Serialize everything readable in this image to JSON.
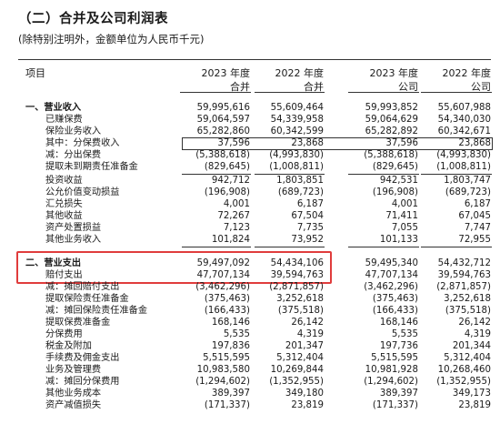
{
  "title": "（二）合并及公司利润表",
  "subtitle": "(除特别注明外，金额单位为人民币千元)",
  "header": {
    "item": "项目",
    "cols": [
      {
        "year": "2023 年度",
        "scope": "合并"
      },
      {
        "year": "2022 年度",
        "scope": "合并"
      },
      {
        "year": "2023 年度",
        "scope": "公司"
      },
      {
        "year": "2022 年度",
        "scope": "公司"
      }
    ]
  },
  "section1": {
    "rows": [
      {
        "label": "一、营业收入",
        "values": [
          "59,995,616",
          "55,609,464",
          "59,993,852",
          "55,607,988"
        ]
      },
      {
        "label": "已赚保费",
        "values": [
          "59,064,597",
          "54,339,958",
          "59,064,629",
          "54,340,030"
        ]
      },
      {
        "label": "保险业务收入",
        "values": [
          "65,282,860",
          "60,342,599",
          "65,282,892",
          "60,342,671"
        ]
      },
      {
        "label": "其中：分保费收入",
        "values": [
          "37,596",
          "23,868",
          "37,596",
          "23,868"
        ]
      },
      {
        "label": "减：分出保费",
        "values": [
          "(5,388,618)",
          "(4,993,830)",
          "(5,388,618)",
          "(4,993,830)"
        ]
      },
      {
        "label": "提取未到期责任准备金",
        "values": [
          "(829,645)",
          "(1,008,811)",
          "(829,645)",
          "(1,008,811)"
        ]
      },
      {
        "label": "投资收益",
        "values": [
          "942,712",
          "1,803,851",
          "942,531",
          "1,803,747"
        ]
      },
      {
        "label": "公允价值变动损益",
        "values": [
          "(196,908)",
          "(689,723)",
          "(196,908)",
          "(689,723)"
        ]
      },
      {
        "label": "汇兑损失",
        "values": [
          "4,001",
          "6,187",
          "4,001",
          "6,187"
        ]
      },
      {
        "label": "其他收益",
        "values": [
          "72,267",
          "67,504",
          "71,411",
          "67,045"
        ]
      },
      {
        "label": "资产处置损益",
        "values": [
          "7,123",
          "7,735",
          "7,055",
          "7,747"
        ]
      },
      {
        "label": "其他业务收入",
        "values": [
          "101,824",
          "73,952",
          "101,133",
          "72,955"
        ]
      }
    ]
  },
  "section2": {
    "rows": [
      {
        "label": "二、营业支出",
        "values": [
          "59,497,092",
          "54,434,106",
          "59,495,340",
          "54,432,712"
        ]
      },
      {
        "label": "赔付支出",
        "values": [
          "47,707,134",
          "39,594,763",
          "47,707,134",
          "39,594,763"
        ]
      },
      {
        "label": "减：摊回赔付支出",
        "values": [
          "(3,462,296)",
          "(2,871,857)",
          "(3,462,296)",
          "(2,871,857)"
        ]
      },
      {
        "label": "提取保险责任准备金",
        "values": [
          "(375,463)",
          "3,252,618",
          "(375,463)",
          "3,252,618"
        ]
      },
      {
        "label": "减：摊回保险责任准备金",
        "values": [
          "(166,433)",
          "(375,518)",
          "(166,433)",
          "(375,518)"
        ]
      },
      {
        "label": "提取保费准备金",
        "values": [
          "168,146",
          "26,142",
          "168,146",
          "26,142"
        ]
      },
      {
        "label": "分保费用",
        "values": [
          "5,535",
          "4,319",
          "5,535",
          "4,319"
        ]
      },
      {
        "label": "税金及附加",
        "values": [
          "197,836",
          "201,347",
          "197,736",
          "201,344"
        ]
      },
      {
        "label": "手续费及佣金支出",
        "values": [
          "5,515,595",
          "5,312,404",
          "5,515,595",
          "5,312,404"
        ]
      },
      {
        "label": "业务及管理费",
        "values": [
          "10,983,580",
          "10,269,844",
          "10,981,928",
          "10,268,460"
        ]
      },
      {
        "label": "减：摊回分保费用",
        "values": [
          "(1,294,602)",
          "(1,352,955)",
          "(1,294,602)",
          "(1,352,955)"
        ]
      },
      {
        "label": "其他业务成本",
        "values": [
          "389,397",
          "349,180",
          "389,397",
          "349,173"
        ]
      },
      {
        "label": "资产减值损失",
        "values": [
          "(171,337)",
          "23,819",
          "(171,337)",
          "23,819"
        ]
      }
    ]
  },
  "highlight_color": "#e03c3c"
}
